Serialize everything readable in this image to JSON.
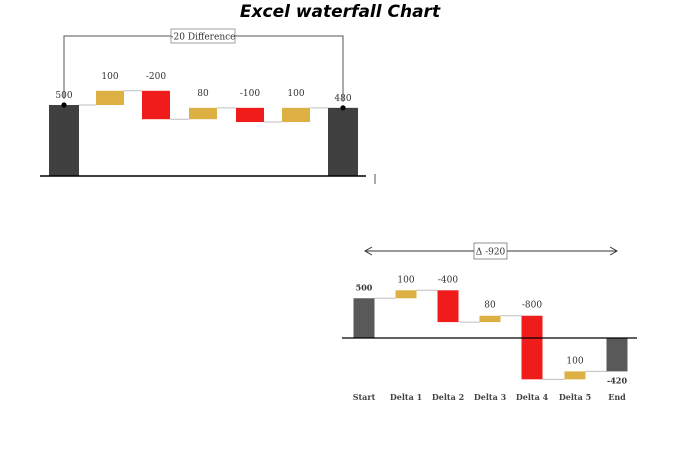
{
  "title": "Excel waterfall Chart",
  "colors": {
    "total": "#404040",
    "total_b": "#595959",
    "increase": "#DDB043",
    "decrease": "#F01B1B",
    "connector": "#BFBFBF",
    "axis": "#000000"
  },
  "chart_data": [
    {
      "type": "waterfall",
      "annotation": "-20 Difference",
      "steps": [
        {
          "kind": "total",
          "value": 500,
          "label": "500"
        },
        {
          "kind": "delta",
          "value": 100,
          "label": "100"
        },
        {
          "kind": "delta",
          "value": -200,
          "label": "-200"
        },
        {
          "kind": "delta",
          "value": 80,
          "label": "80"
        },
        {
          "kind": "delta",
          "value": -100,
          "label": "-100"
        },
        {
          "kind": "delta",
          "value": 100,
          "label": "100"
        },
        {
          "kind": "total",
          "value": 480,
          "label": "480"
        }
      ]
    },
    {
      "type": "waterfall",
      "annotation": "Δ -920",
      "categories": [
        "Start",
        "Delta 1",
        "Delta 2",
        "Delta 3",
        "Delta 4",
        "Delta 5",
        "End"
      ],
      "steps": [
        {
          "kind": "total",
          "value": 500,
          "label": "500"
        },
        {
          "kind": "delta",
          "value": 100,
          "label": "100"
        },
        {
          "kind": "delta",
          "value": -400,
          "label": "-400"
        },
        {
          "kind": "delta",
          "value": 80,
          "label": "80"
        },
        {
          "kind": "delta",
          "value": -800,
          "label": "-800"
        },
        {
          "kind": "delta",
          "value": 100,
          "label": "100"
        },
        {
          "kind": "total",
          "value": -420,
          "label": "-420"
        }
      ]
    }
  ]
}
